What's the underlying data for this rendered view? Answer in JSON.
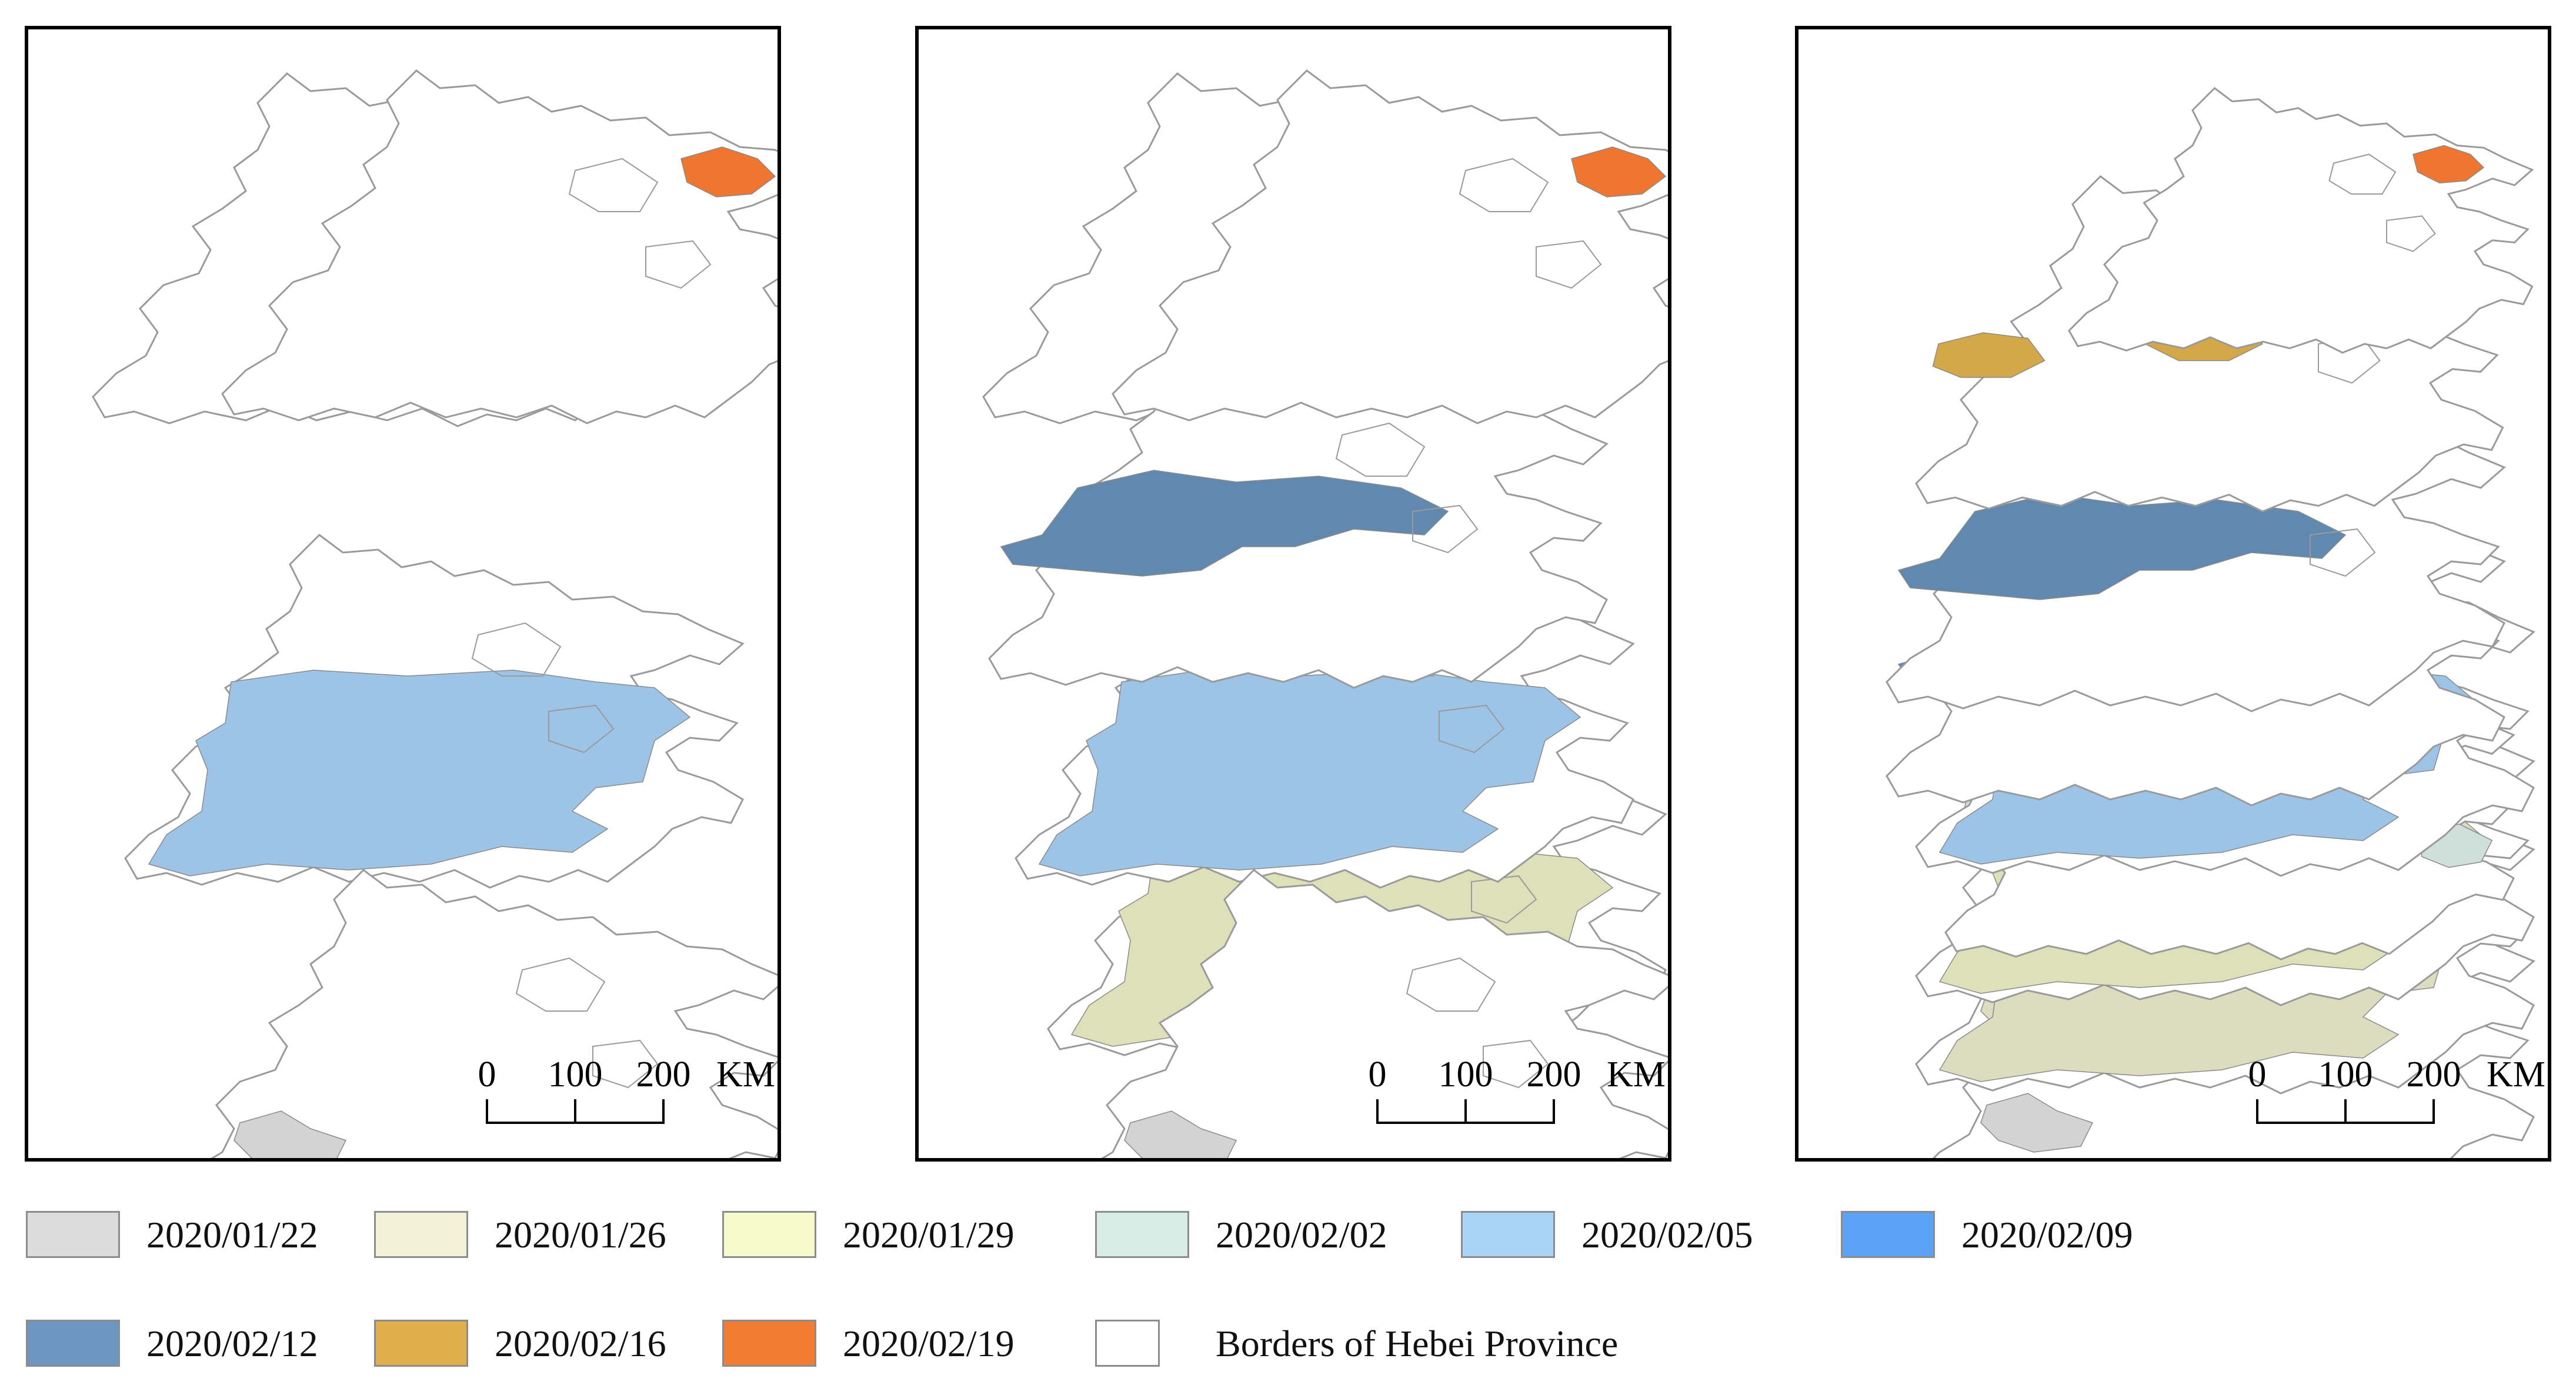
{
  "panels": [
    {
      "id": "panel-1",
      "layers": [
        {
          "id": "l1",
          "fill": "#ffffff",
          "regions": []
        },
        {
          "id": "l2",
          "fill": "#9dc3e6",
          "regions": [
            "main"
          ]
        },
        {
          "id": "l3",
          "fill": "#ef7630",
          "regions": [
            "ne"
          ]
        },
        {
          "id": "l4",
          "fill": "#d3d3d3",
          "regions": [
            "sw"
          ]
        }
      ],
      "scale_bar": {
        "ticks": [
          "0",
          "100",
          "200"
        ],
        "unit": "KM"
      }
    },
    {
      "id": "panel-2",
      "layers": [
        {
          "id": "l1",
          "fill": "#ffffff",
          "regions": []
        },
        {
          "id": "l2",
          "fill": "#dde0b8",
          "regions": [
            "main"
          ]
        },
        {
          "id": "l3",
          "fill": "#9dc3e6",
          "regions": [
            "main"
          ]
        },
        {
          "id": "l4",
          "fill": "#6189b0",
          "regions": [
            "wide"
          ]
        },
        {
          "id": "l5",
          "fill": "#ef7630",
          "regions": [
            "ne"
          ]
        },
        {
          "id": "l6",
          "fill": "#d3d3d3",
          "regions": [
            "sw"
          ]
        }
      ],
      "scale_bar": {
        "ticks": [
          "0",
          "100",
          "200"
        ],
        "unit": "KM"
      }
    },
    {
      "id": "panel-3",
      "layers": [
        {
          "id": "l1",
          "fill": "#d3d3d3",
          "regions": [
            "sw"
          ]
        },
        {
          "id": "l2",
          "fill": "#dcdcbf",
          "regions": [
            "sw",
            "main"
          ]
        },
        {
          "id": "l3",
          "fill": "#dde0b8",
          "regions": [
            "main"
          ]
        },
        {
          "id": "l4",
          "fill": "#cfe0da",
          "regions": [
            "west",
            "ne",
            "east"
          ]
        },
        {
          "id": "l5",
          "fill": "#9dc3e6",
          "regions": [
            "main"
          ]
        },
        {
          "id": "l6",
          "fill": "#4a90e2",
          "regions": [
            "wide"
          ]
        },
        {
          "id": "l7",
          "fill": "#6189b0",
          "regions": [
            "wide"
          ]
        },
        {
          "id": "l8",
          "fill": "#d4a849",
          "regions": [
            "center",
            "ne",
            "west"
          ]
        },
        {
          "id": "l9",
          "fill": "#ef7630",
          "regions": [
            "ne"
          ]
        }
      ],
      "scale_bar": {
        "ticks": [
          "0",
          "100",
          "200"
        ],
        "unit": "KM"
      }
    }
  ],
  "legend": [
    {
      "label": "2020/01/22",
      "color": "#dcdcdc"
    },
    {
      "label": "2020/01/26",
      "color": "#f4f1d9"
    },
    {
      "label": "2020/01/29",
      "color": "#f6f9cc"
    },
    {
      "label": "2020/02/02",
      "color": "#d9ece6"
    },
    {
      "label": "2020/02/05",
      "color": "#a9d4f7"
    },
    {
      "label": "2020/02/09",
      "color": "#5aa3f5"
    },
    {
      "label": "2020/02/12",
      "color": "#6b97c2"
    },
    {
      "label": "2020/02/16",
      "color": "#ddae4a"
    },
    {
      "label": "2020/02/19",
      "color": "#f27c31"
    },
    {
      "label": "Borders of Hebei Province",
      "color": "#ffffff"
    }
  ]
}
